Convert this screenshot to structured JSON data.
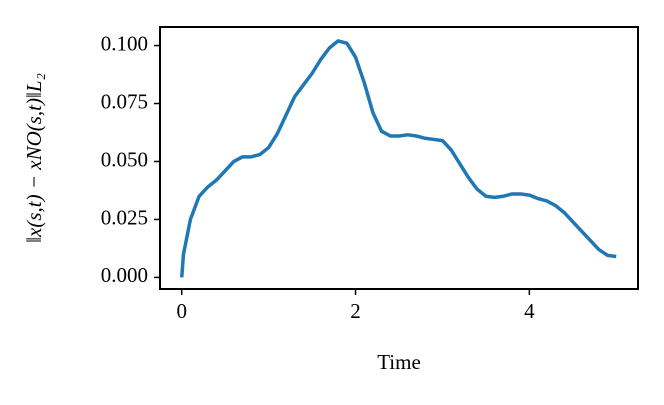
{
  "chart_data": {
    "type": "line",
    "xlabel": "Time",
    "ylabel": "‖x(s,t) − xNO(s,t)‖L₂",
    "x": [
      0,
      0.02,
      0.1,
      0.2,
      0.3,
      0.4,
      0.5,
      0.6,
      0.7,
      0.8,
      0.9,
      1.0,
      1.1,
      1.2,
      1.3,
      1.4,
      1.5,
      1.6,
      1.7,
      1.8,
      1.9,
      2.0,
      2.1,
      2.2,
      2.3,
      2.4,
      2.5,
      2.6,
      2.7,
      2.8,
      2.9,
      3.0,
      3.1,
      3.2,
      3.3,
      3.4,
      3.5,
      3.6,
      3.7,
      3.8,
      3.9,
      4.0,
      4.1,
      4.2,
      4.3,
      4.4,
      4.5,
      4.6,
      4.7,
      4.8,
      4.9,
      5.0
    ],
    "series": [
      {
        "color": "#1f77b4",
        "values": [
          0.0,
          0.01,
          0.025,
          0.035,
          0.039,
          0.042,
          0.046,
          0.05,
          0.052,
          0.052,
          0.053,
          0.056,
          0.062,
          0.07,
          0.078,
          0.083,
          0.088,
          0.094,
          0.099,
          0.102,
          0.101,
          0.095,
          0.084,
          0.071,
          0.063,
          0.061,
          0.061,
          0.0615,
          0.061,
          0.06,
          0.0595,
          0.059,
          0.055,
          0.049,
          0.043,
          0.038,
          0.035,
          0.0345,
          0.035,
          0.036,
          0.036,
          0.0355,
          0.034,
          0.033,
          0.031,
          0.028,
          0.024,
          0.02,
          0.016,
          0.012,
          0.0095,
          0.009
        ]
      }
    ],
    "xlim": [
      -0.25,
      5.25
    ],
    "ylim": [
      -0.005,
      0.108
    ],
    "xticks": [
      0,
      2,
      4
    ],
    "yticks": [
      {
        "value": 0,
        "label": "0.000"
      },
      {
        "value": 0.025,
        "label": "0.025"
      },
      {
        "value": 0.05,
        "label": "0.050"
      },
      {
        "value": 0.075,
        "label": "0.075"
      },
      {
        "value": 0.1,
        "label": "0.100"
      }
    ],
    "grid": false
  }
}
